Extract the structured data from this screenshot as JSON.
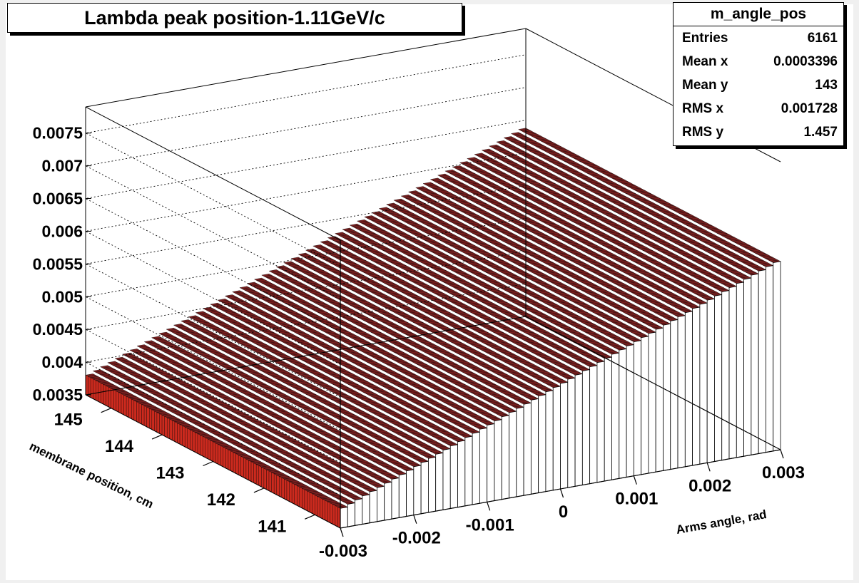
{
  "title": "Lambda peak position-1.11GeV/c",
  "stats": {
    "name": "m_angle_pos",
    "rows": [
      {
        "label": "Entries",
        "value": "6161"
      },
      {
        "label": "Mean x",
        "value": "0.0003396"
      },
      {
        "label": "Mean y",
        "value": "143"
      },
      {
        "label": "RMS x",
        "value": "0.001728"
      },
      {
        "label": "RMS y",
        "value": "1.457"
      }
    ]
  },
  "colors": {
    "background": "#f0f0f0",
    "bar_top": "#7a1f1f",
    "bar_left": "#cc2a1e",
    "bar_right": "#ffffff",
    "outline": "#000000"
  },
  "chart_data": {
    "type": "lego3d",
    "title": "Lambda peak position-1.11GeV/c",
    "xlabel": "Arms angle, rad",
    "ylabel": "membrane position, cm",
    "zlabel": "",
    "x_ticks": [
      "-0.003",
      "-0.002",
      "-0.001",
      "0",
      "0.001",
      "0.002",
      "0.003"
    ],
    "y_ticks": [
      "141",
      "142",
      "143",
      "144",
      "145"
    ],
    "z_ticks": [
      "0.0035",
      "0.004",
      "0.0045",
      "0.005",
      "0.0055",
      "0.006",
      "0.0065",
      "0.007",
      "0.0075"
    ],
    "xlim": [
      -0.003,
      0.003
    ],
    "ylim": [
      140.5,
      145.5
    ],
    "zlim": [
      0.0035,
      0.0079
    ],
    "x_bins": 60,
    "y_bins": 100,
    "surface": "bin content increases linearly with x and is flat in y",
    "z_at_xmin": 0.00378,
    "z_at_xmax": 0.0064
  }
}
